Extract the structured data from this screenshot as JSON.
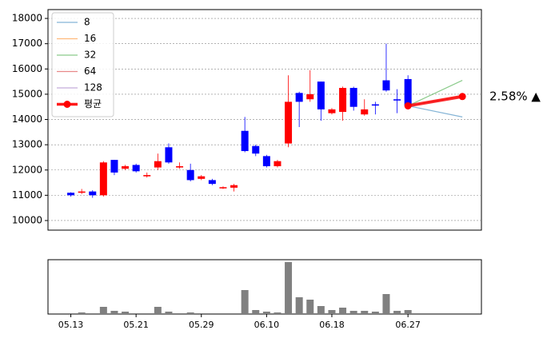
{
  "chart_data": {
    "type": "candlestick",
    "categories": [
      "05.13",
      null,
      null,
      null,
      null,
      null,
      "05.21",
      null,
      null,
      null,
      null,
      null,
      "05.29",
      null,
      null,
      null,
      null,
      null,
      "06.10",
      null,
      null,
      null,
      null,
      null,
      "06.18",
      null,
      null,
      null,
      null,
      null,
      null,
      "06.27",
      null,
      null,
      null,
      null,
      null
    ],
    "open": [
      11100,
      11100,
      11150,
      11000,
      12400,
      12050,
      12200,
      11750,
      12100,
      12900,
      12100,
      12000,
      11650,
      11600,
      11300,
      11300,
      13550,
      12950,
      12550,
      12150,
      13050,
      15050,
      14800,
      15500,
      14250,
      14300,
      15250,
      14200,
      14600,
      15550,
      14800,
      15600,
      null,
      null,
      null,
      null,
      null
    ],
    "high": [
      11120,
      11250,
      11200,
      12350,
      12400,
      12200,
      12250,
      11900,
      12650,
      13050,
      12300,
      12250,
      11800,
      11650,
      11350,
      11450,
      14100,
      13000,
      12600,
      12400,
      15750,
      15100,
      15950,
      15500,
      14450,
      15300,
      15300,
      14800,
      14700,
      17000,
      15200,
      15750,
      null,
      null,
      null,
      null,
      null
    ],
    "low": [
      10950,
      11050,
      10900,
      10950,
      11800,
      12000,
      11900,
      11700,
      12000,
      12250,
      12050,
      11550,
      11600,
      11400,
      11250,
      11150,
      12700,
      12550,
      12100,
      12100,
      12900,
      13700,
      14700,
      13950,
      14200,
      13950,
      14350,
      14150,
      14200,
      15100,
      14250,
      14400,
      null,
      null,
      null,
      null,
      null
    ],
    "close": [
      11000,
      11150,
      11000,
      12300,
      11900,
      12150,
      11950,
      11800,
      12350,
      12300,
      12150,
      11600,
      11750,
      11450,
      11320,
      11400,
      12750,
      12650,
      12150,
      12350,
      14700,
      14700,
      15000,
      14400,
      14400,
      15250,
      14500,
      14400,
      14550,
      15150,
      14750,
      14550,
      null,
      null,
      null,
      null,
      null
    ],
    "up_color": "#ff0000",
    "down_color": "#0000ff",
    "volume": [
      1,
      2,
      1,
      9,
      4,
      3,
      1,
      1,
      9,
      3,
      1,
      2,
      1,
      1,
      1,
      1,
      30,
      5,
      3,
      2,
      65,
      21,
      18,
      10,
      5,
      8,
      4,
      4,
      3,
      25,
      4,
      5,
      null,
      null,
      null,
      null,
      null
    ],
    "volume_color": "#808080",
    "volume_ylim": [
      0,
      68
    ],
    "series": [
      {
        "name": "8",
        "color": "#1f77b4",
        "values": [
          null,
          null,
          null,
          null,
          null,
          null,
          null,
          null,
          null,
          null,
          null,
          null,
          null,
          null,
          null,
          null,
          null,
          null,
          null,
          null,
          null,
          null,
          null,
          null,
          null,
          null,
          null,
          null,
          null,
          null,
          null,
          14540,
          null,
          null,
          null,
          null,
          14100
        ]
      },
      {
        "name": "16",
        "color": "#ff7f0e",
        "values": [
          null,
          null,
          null,
          null,
          null,
          null,
          null,
          null,
          null,
          null,
          null,
          null,
          null,
          null,
          null,
          null,
          null,
          null,
          null,
          null,
          null,
          null,
          null,
          null,
          null,
          null,
          null,
          null,
          null,
          null,
          null,
          14540,
          null,
          null,
          null,
          null,
          14900
        ]
      },
      {
        "name": "32",
        "color": "#2ca02c",
        "values": [
          null,
          null,
          null,
          null,
          null,
          null,
          null,
          null,
          null,
          null,
          null,
          null,
          null,
          null,
          null,
          null,
          null,
          null,
          null,
          null,
          null,
          null,
          null,
          null,
          null,
          null,
          null,
          null,
          null,
          null,
          null,
          14540,
          null,
          null,
          null,
          null,
          15550
        ]
      },
      {
        "name": "64",
        "color": "#d62728",
        "values": [
          null,
          null,
          null,
          null,
          null,
          null,
          null,
          null,
          null,
          null,
          null,
          null,
          null,
          null,
          null,
          null,
          null,
          null,
          null,
          null,
          null,
          null,
          null,
          null,
          null,
          null,
          null,
          null,
          null,
          null,
          null,
          14540,
          null,
          null,
          null,
          null,
          14950
        ]
      },
      {
        "name": "128",
        "color": "#9467bd",
        "values": [
          null,
          null,
          null,
          null,
          null,
          null,
          null,
          null,
          null,
          null,
          null,
          null,
          null,
          null,
          null,
          null,
          null,
          null,
          null,
          null,
          null,
          null,
          null,
          null,
          null,
          null,
          null,
          null,
          null,
          null,
          null,
          14540,
          null,
          null,
          null,
          null,
          14880
        ]
      },
      {
        "name": "평균",
        "color": "#ff0000",
        "values": [
          null,
          null,
          null,
          null,
          null,
          null,
          null,
          null,
          null,
          null,
          null,
          null,
          null,
          null,
          null,
          null,
          null,
          null,
          null,
          null,
          null,
          null,
          null,
          null,
          null,
          null,
          null,
          null,
          null,
          null,
          null,
          14540,
          null,
          null,
          null,
          null,
          14910
        ],
        "marker": true
      }
    ],
    "annotation": "2.58% ▲",
    "annotation_color": "#ff0000",
    "ylim": [
      9620,
      18350
    ],
    "yticks": [
      10000,
      11000,
      12000,
      13000,
      14000,
      15000,
      16000,
      17000,
      18000
    ],
    "grid": true,
    "legend": "upper left"
  }
}
